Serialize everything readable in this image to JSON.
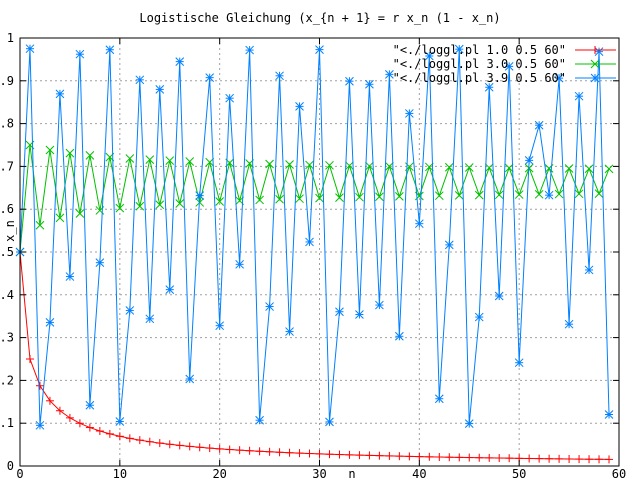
{
  "chart_data": {
    "type": "line",
    "title": "Logistische Gleichung (x_{n + 1} = r x_n (1 - x_n)",
    "xlabel": "n",
    "ylabel": "x_n",
    "xlim": [
      0,
      60
    ],
    "ylim": [
      0,
      1
    ],
    "xticks": [
      0,
      10,
      20,
      30,
      40,
      50,
      60
    ],
    "xtick_labels": [
      "0",
      "10",
      "20",
      "30",
      "40",
      "50",
      "60"
    ],
    "yticks": [
      0,
      0.1,
      0.2,
      0.3,
      0.4,
      0.5,
      0.6,
      0.7,
      0.8,
      0.9,
      1
    ],
    "ytick_labels": [
      "0",
      "0.1",
      "0.2",
      "0.3",
      "0.4",
      "0.5",
      "0.6",
      "0.7",
      "0.8",
      "0.9",
      "1"
    ],
    "grid": true,
    "legend_position": "top-right",
    "formula": "x_{n+1} = r * x_n * (1 - x_n), n = 0..59",
    "series": [
      {
        "name": "\"<./loggl.pl 1.0 0.5 60\"",
        "r": 1.0,
        "x0": 0.5,
        "n": 60,
        "color": "#ff0000",
        "marker": "plus"
      },
      {
        "name": "\"<./loggl.pl 3.0 0.5 60\"",
        "r": 3.0,
        "x0": 0.5,
        "n": 60,
        "color": "#00c000",
        "marker": "cross"
      },
      {
        "name": "\"<./loggl.pl 3.9 0.5 60\"",
        "r": 3.9,
        "x0": 0.5,
        "n": 60,
        "color": "#0080ff",
        "marker": "star"
      }
    ]
  }
}
